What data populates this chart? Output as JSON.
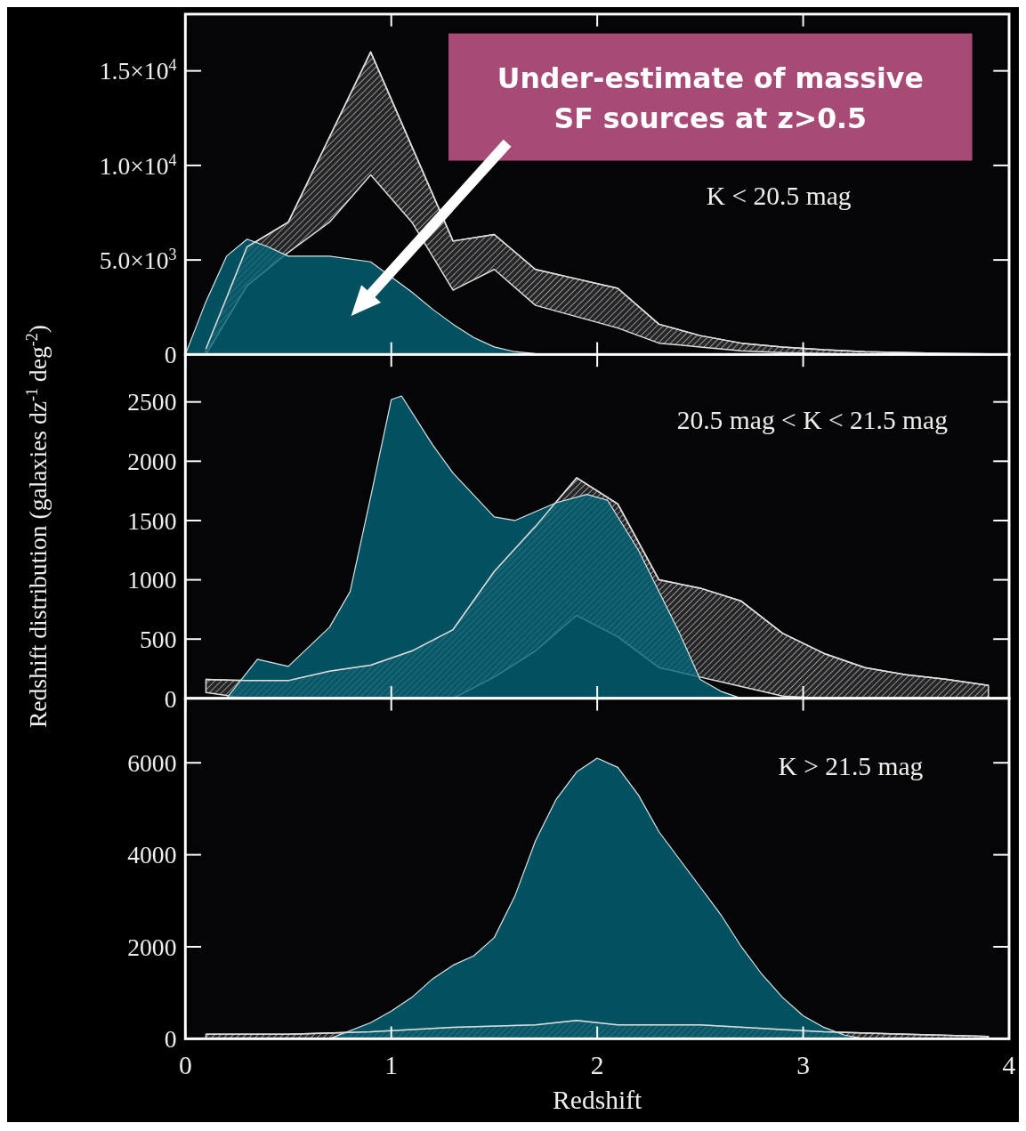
{
  "chart_data": [
    {
      "type": "area",
      "title": "K < 20.5 mag",
      "ylabel": null,
      "xlim": [
        0,
        4
      ],
      "xticks": [
        0,
        1,
        2,
        3,
        4
      ],
      "ylim": [
        0,
        18000
      ],
      "yticks": [
        0,
        {
          "value": 5000,
          "label": "5.0×10$^{3}$"
        },
        {
          "value": 10000,
          "label": "1.0×10$^{4}$"
        },
        {
          "value": 15000,
          "label": "1.5×10$^{4}$"
        }
      ],
      "tick_labels": "y",
      "annotations": [
        "Under-estimate of massive SF sources at z>0.5"
      ],
      "series": [
        {
          "color": "#02667a",
          "x": [
            0,
            0.1,
            0.2,
            0.3,
            0.4,
            0.5,
            0.7,
            0.9,
            1.1,
            1.2,
            1.3,
            1.4,
            1.5,
            1.6,
            1.7,
            1.8
          ],
          "values": [
            0,
            2800,
            5200,
            6100,
            5700,
            5200,
            5200,
            4900,
            3300,
            2400,
            1600,
            900,
            400,
            150,
            50,
            0
          ]
        },
        {
          "type": "line",
          "color": "#dddddd",
          "x": [
            0.1,
            0.3,
            0.5,
            0.7,
            0.9,
            1.1,
            1.3,
            1.5,
            1.7,
            1.9,
            2.1,
            2.3,
            2.5,
            2.7,
            2.9,
            3.1,
            3.3,
            3.5,
            3.7,
            3.9
          ],
          "values": [
            300,
            5700,
            7000,
            11500,
            16000,
            11000,
            6000,
            6350,
            4500,
            4000,
            3500,
            1600,
            1000,
            600,
            400,
            250,
            150,
            100,
            50,
            30
          ],
          "upper": [
            300,
            5700,
            7000,
            11500,
            16000,
            11000,
            6000,
            6350,
            4500,
            4000,
            3500,
            1600,
            1000,
            600,
            400,
            250,
            150,
            100,
            50,
            30
          ],
          "lower": [
            0,
            3650,
            5400,
            7000,
            9500,
            7000,
            3400,
            4500,
            2600,
            2000,
            1400,
            600,
            400,
            200,
            100,
            50,
            0,
            0,
            0,
            0
          ]
        }
      ]
    },
    {
      "type": "area",
      "title": "20.5 mag < K < 21.5 mag",
      "ylabel": "Redshift distribution (galaxies dz$^{-1}$ deg$^{-2}$)",
      "xlim": [
        0,
        4
      ],
      "xticks": [
        0,
        1,
        2,
        3,
        4
      ],
      "ylim": [
        0,
        2900
      ],
      "yticks": [
        0,
        500,
        1000,
        1500,
        2000,
        2500
      ],
      "tick_labels": "y",
      "series": [
        {
          "color": "#02667a",
          "x": [
            0.2,
            0.35,
            0.5,
            0.7,
            0.8,
            0.9,
            1.0,
            1.05,
            1.2,
            1.3,
            1.5,
            1.6,
            1.8,
            1.95,
            2.05,
            2.2,
            2.4,
            2.5,
            2.6,
            2.7
          ],
          "values": [
            0,
            330,
            270,
            600,
            900,
            1700,
            2520,
            2550,
            2140,
            1900,
            1530,
            1500,
            1650,
            1720,
            1670,
            1250,
            550,
            160,
            60,
            0
          ]
        },
        {
          "type": "line",
          "color": "#dddddd",
          "x": [
            0.1,
            0.3,
            0.5,
            0.7,
            0.9,
            1.1,
            1.3,
            1.5,
            1.7,
            1.9,
            2.1,
            2.3,
            2.5,
            2.7,
            2.9,
            3.1,
            3.3,
            3.5,
            3.7,
            3.9
          ],
          "values": [
            160,
            150,
            150,
            230,
            280,
            400,
            580,
            1070,
            1450,
            1860,
            1640,
            1000,
            930,
            820,
            550,
            380,
            260,
            200,
            160,
            110
          ],
          "upper": [
            160,
            150,
            150,
            230,
            280,
            400,
            580,
            1070,
            1450,
            1860,
            1640,
            1000,
            930,
            820,
            550,
            380,
            260,
            200,
            160,
            110
          ],
          "lower": [
            50,
            0,
            0,
            0,
            0,
            0,
            0,
            180,
            400,
            700,
            520,
            260,
            180,
            100,
            20,
            0,
            0,
            0,
            0,
            0
          ]
        }
      ]
    },
    {
      "type": "area",
      "title": "K > 21.5 mag",
      "xlabel": "Redshift",
      "xlim": [
        0,
        4
      ],
      "xticks": [
        0,
        1,
        2,
        3,
        4
      ],
      "ylim": [
        0,
        7400
      ],
      "yticks": [
        0,
        2000,
        4000,
        6000
      ],
      "series": [
        {
          "color": "#02667a",
          "x": [
            0.7,
            0.9,
            1.0,
            1.1,
            1.2,
            1.3,
            1.4,
            1.5,
            1.6,
            1.7,
            1.8,
            1.9,
            2.0,
            2.1,
            2.2,
            2.3,
            2.4,
            2.5,
            2.6,
            2.7,
            2.8,
            2.9,
            3.0,
            3.1,
            3.2,
            3.3
          ],
          "values": [
            0,
            350,
            600,
            900,
            1300,
            1600,
            1800,
            2200,
            3100,
            4300,
            5200,
            5800,
            6100,
            5900,
            5300,
            4500,
            3900,
            3300,
            2700,
            2000,
            1400,
            900,
            500,
            250,
            80,
            0
          ]
        },
        {
          "type": "line",
          "color": "#dddddd",
          "x": [
            0.1,
            0.5,
            0.9,
            1.3,
            1.7,
            1.9,
            2.1,
            2.5,
            2.9,
            3.1,
            3.5,
            3.9
          ],
          "values": [
            100,
            100,
            150,
            250,
            300,
            400,
            300,
            300,
            200,
            150,
            100,
            50
          ],
          "upper": [
            100,
            100,
            150,
            250,
            300,
            400,
            300,
            300,
            200,
            150,
            100,
            50
          ],
          "lower": [
            0,
            0,
            0,
            0,
            0,
            0,
            0,
            0,
            0,
            0,
            0,
            0
          ]
        }
      ]
    }
  ]
}
